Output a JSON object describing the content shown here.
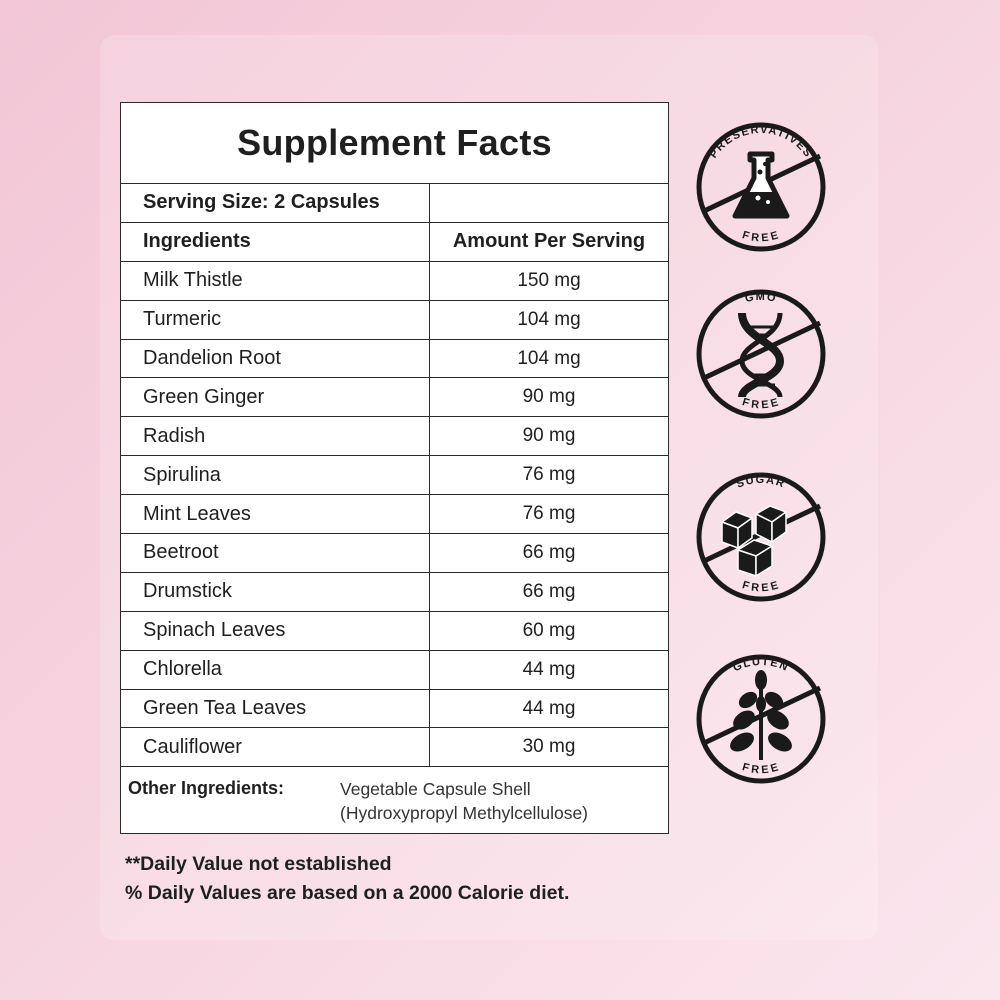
{
  "facts": {
    "title": "Supplement Facts",
    "serving_size": "Serving Size: 2 Capsules",
    "col_ingredients": "Ingredients",
    "col_amount": "Amount Per Serving",
    "rows": [
      {
        "name": "Milk Thistle",
        "amount": "150 mg"
      },
      {
        "name": "Turmeric",
        "amount": "104 mg"
      },
      {
        "name": "Dandelion Root",
        "amount": "104 mg"
      },
      {
        "name": "Green Ginger",
        "amount": "90 mg"
      },
      {
        "name": "Radish",
        "amount": "90 mg"
      },
      {
        "name": "Spirulina",
        "amount": "76 mg"
      },
      {
        "name": "Mint Leaves",
        "amount": "76 mg"
      },
      {
        "name": "Beetroot",
        "amount": "66 mg"
      },
      {
        "name": "Drumstick",
        "amount": "66 mg"
      },
      {
        "name": "Spinach Leaves",
        "amount": "60 mg"
      },
      {
        "name": "Chlorella",
        "amount": "44 mg"
      },
      {
        "name": "Green Tea Leaves",
        "amount": "44 mg"
      },
      {
        "name": "Cauliflower",
        "amount": "30 mg"
      }
    ],
    "other_label": "Other Ingredients:",
    "other_line1": "Vegetable Capsule Shell",
    "other_line2": "(Hydroxypropyl Methylcellulose)"
  },
  "notes": {
    "line1": "**Daily Value not established",
    "line2": "% Daily Values are based on a 2000 Calorie diet."
  },
  "badges": [
    {
      "top_text": "PRESERVATIVES",
      "bottom_text": "FREE",
      "icon": "flask-icon"
    },
    {
      "top_text": "GMO",
      "bottom_text": "FREE",
      "icon": "dna-icon"
    },
    {
      "top_text": "SUGAR",
      "bottom_text": "FREE",
      "icon": "sugar-cubes-icon"
    },
    {
      "top_text": "GLUTEN",
      "bottom_text": "FREE",
      "icon": "wheat-icon"
    }
  ],
  "colors": {
    "background": "#f6d4df",
    "ink": "#1f1f1f",
    "table_bg": "#ffffff"
  }
}
